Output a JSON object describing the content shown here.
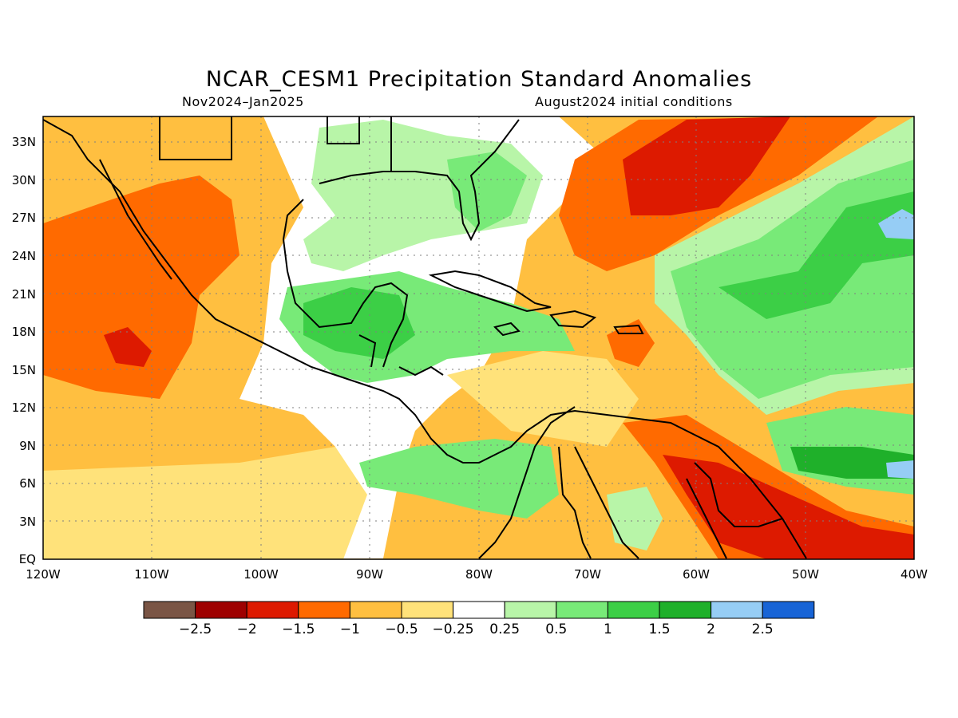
{
  "title": "NCAR_CESM1 Precipitation Standard Anomalies",
  "subtitle_left": "Nov2024–Jan2025",
  "subtitle_right": "August2024 initial conditions",
  "map": {
    "lat_range": [
      0,
      35
    ],
    "lon_range": [
      -120,
      -40
    ],
    "lat_labels": [
      "EQ",
      "3N",
      "6N",
      "9N",
      "12N",
      "15N",
      "18N",
      "21N",
      "24N",
      "27N",
      "30N",
      "33N"
    ],
    "lon_labels": [
      "120W",
      "110W",
      "100W",
      "90W",
      "80W",
      "70W",
      "60W",
      "50W",
      "40W"
    ],
    "gridlines": true,
    "coastlines": true
  },
  "colorbar": {
    "colors": [
      "#7a5545",
      "#9e0000",
      "#dd1a00",
      "#ff6a00",
      "#ffbf40",
      "#ffe27a",
      "#ffffff",
      "#b8f5a8",
      "#78ea78",
      "#3ccf46",
      "#1fb02a",
      "#96cdf5",
      "#1864d6"
    ],
    "labels": [
      "−2.5",
      "−2",
      "−1.5",
      "−1",
      "−0.5",
      "−0.25",
      "0.25",
      "0.5",
      "1",
      "1.5",
      "2",
      "2.5"
    ]
  }
}
